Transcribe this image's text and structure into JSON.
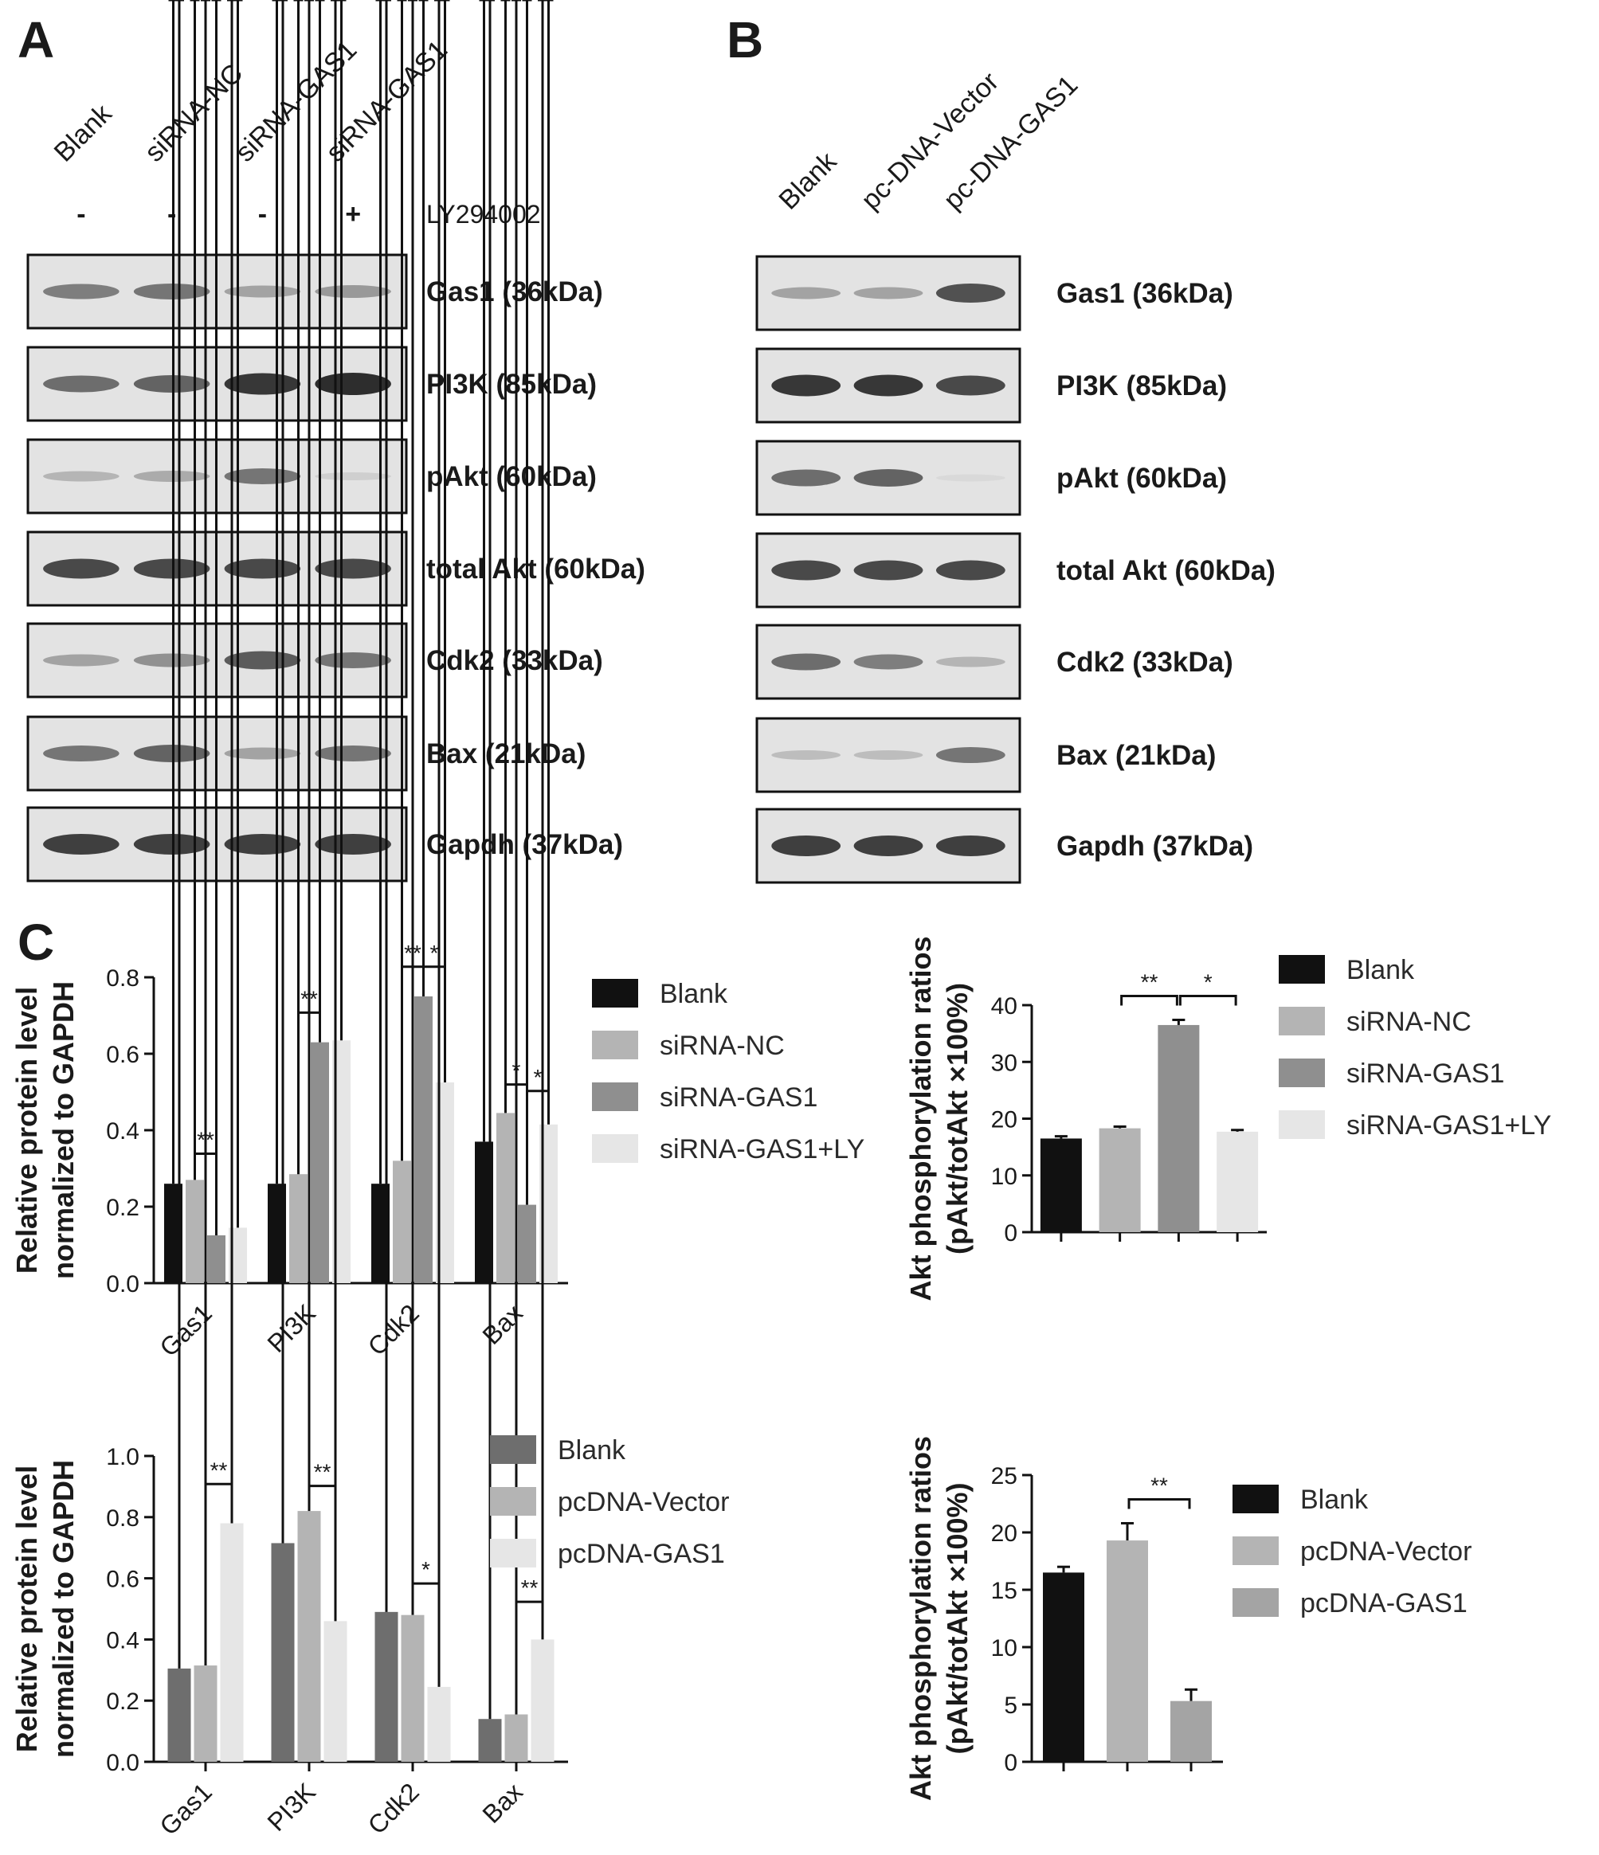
{
  "panel_letters": [
    "A",
    "B",
    "C"
  ],
  "blotA": {
    "lanes": [
      "Blank",
      "siRNA-NC",
      "siRNA-GAS1",
      "siRNA-GAS1"
    ],
    "treatment_signs": [
      "-",
      "-",
      "-",
      "+"
    ],
    "treatment_label": "LY294002",
    "bands": [
      {
        "label": "Gas1 (36kDa)",
        "intensity": [
          0.55,
          0.6,
          0.35,
          0.4
        ]
      },
      {
        "label": "PI3K (85kDa)",
        "intensity": [
          0.65,
          0.7,
          0.95,
          1.0
        ]
      },
      {
        "label": "pAkt (60kDa)",
        "intensity": [
          0.25,
          0.3,
          0.6,
          0.1
        ]
      },
      {
        "label": "total Akt (60kDa)",
        "intensity": [
          0.85,
          0.85,
          0.85,
          0.85
        ]
      },
      {
        "label": "Cdk2 (33kDa)",
        "intensity": [
          0.35,
          0.45,
          0.75,
          0.6
        ]
      },
      {
        "label": "Bax (21kDa)",
        "intensity": [
          0.6,
          0.7,
          0.35,
          0.6
        ]
      },
      {
        "label": "Gapdh (37kDa)",
        "intensity": [
          0.9,
          0.9,
          0.9,
          0.9
        ]
      }
    ]
  },
  "blotB": {
    "lanes": [
      "Blank",
      "pc-DNA-Vector",
      "pc-DNA-GAS1"
    ],
    "bands": [
      {
        "label": "Gas1 (36kDa)",
        "intensity": [
          0.35,
          0.35,
          0.8
        ]
      },
      {
        "label": "PI3K (85kDa)",
        "intensity": [
          0.95,
          0.95,
          0.85
        ]
      },
      {
        "label": "pAkt (60kDa)",
        "intensity": [
          0.65,
          0.7,
          0.05
        ]
      },
      {
        "label": "total Akt (60kDa)",
        "intensity": [
          0.85,
          0.85,
          0.85
        ]
      },
      {
        "label": "Cdk2 (33kDa)",
        "intensity": [
          0.65,
          0.55,
          0.25
        ]
      },
      {
        "label": "Bax (21kDa)",
        "intensity": [
          0.2,
          0.2,
          0.6
        ]
      },
      {
        "label": "Gapdh (37kDa)",
        "intensity": [
          0.9,
          0.9,
          0.9
        ]
      }
    ]
  },
  "chart_data": [
    {
      "type": "bar",
      "categories": [
        "Gas1",
        "PI3K",
        "Cdk2",
        "Bax"
      ],
      "ylabel": [
        "Relative protein level",
        "normalized to GAPDH"
      ],
      "ylim": [
        0,
        0.8
      ],
      "yticks": [
        "0.0",
        "0.2",
        "0.4",
        "0.6",
        "0.8"
      ],
      "legend": "right",
      "series": [
        {
          "name": "Blank",
          "color": "#111111",
          "values": [
            0.26,
            0.26,
            0.26,
            0.37
          ],
          "err": [
            0.004,
            0.01,
            0.004,
            0.008
          ]
        },
        {
          "name": "siRNA-NC",
          "color": "#b4b4b4",
          "values": [
            0.27,
            0.285,
            0.32,
            0.445
          ],
          "err": [
            0.006,
            0.01,
            0.045,
            0.012
          ]
        },
        {
          "name": "siRNA-GAS1",
          "color": "#8f8f8f",
          "values": [
            0.125,
            0.63,
            0.75,
            0.205
          ],
          "err": [
            0.004,
            0.015,
            0.015,
            0.012
          ]
        },
        {
          "name": "siRNA-GAS1+LY",
          "color": "#e6e6e6",
          "values": [
            0.145,
            0.635,
            0.525,
            0.415
          ],
          "err": [
            0.012,
            0.06,
            0.004,
            0.025
          ]
        }
      ],
      "significance": [
        {
          "category": 0,
          "from": 1,
          "to": 2,
          "label": "**"
        },
        {
          "category": 1,
          "from": 1,
          "to": 2,
          "label": "**"
        },
        {
          "category": 2,
          "from": 1,
          "to": 2,
          "label": "**"
        },
        {
          "category": 2,
          "from": 2,
          "to": 3,
          "label": "*"
        },
        {
          "category": 3,
          "from": 1,
          "to": 2,
          "label": "*"
        },
        {
          "category": 3,
          "from": 2,
          "to": 3,
          "label": "*"
        }
      ]
    },
    {
      "type": "bar",
      "categories": [
        "Blank",
        "siRNA-NC",
        "siRNA-GAS1",
        "siRNA-GAS1+LY"
      ],
      "ylabel": [
        "Akt phosphorylation ratios",
        "(pAkt/totAkt ×100%)"
      ],
      "ylim": [
        0,
        40
      ],
      "yticks": [
        "0",
        "10",
        "20",
        "30",
        "40"
      ],
      "legend": "right",
      "series": [
        {
          "name": "Blank",
          "color": "#111111",
          "value": 16.5,
          "err": 0.4
        },
        {
          "name": "siRNA-NC",
          "color": "#b4b4b4",
          "value": 18.3,
          "err": 0.3
        },
        {
          "name": "siRNA-GAS1",
          "color": "#8f8f8f",
          "value": 36.5,
          "err": 0.9
        },
        {
          "name": "siRNA-GAS1+LY",
          "color": "#e6e6e6",
          "value": 17.7,
          "err": 0.3
        }
      ],
      "significance": [
        {
          "from": 1,
          "to": 2,
          "label": "**"
        },
        {
          "from": 2,
          "to": 3,
          "label": "*"
        }
      ]
    },
    {
      "type": "bar",
      "categories": [
        "Gas1",
        "PI3K",
        "Cdk2",
        "Bax"
      ],
      "ylabel": [
        "Relative protein level",
        "normalized to GAPDH"
      ],
      "ylim": [
        0,
        1.0
      ],
      "yticks": [
        "0.0",
        "0.2",
        "0.4",
        "0.6",
        "0.8",
        "1.0"
      ],
      "legend": "right",
      "series": [
        {
          "name": "Blank",
          "color": "#6e6e6e",
          "values": [
            0.305,
            0.715,
            0.49,
            0.14
          ],
          "err": [
            0.02,
            0.02,
            0.004,
            0.004
          ]
        },
        {
          "name": "pcDNA-Vector",
          "color": "#b4b4b4",
          "values": [
            0.315,
            0.82,
            0.48,
            0.155
          ],
          "err": [
            0.008,
            0.004,
            0.025,
            0.006
          ]
        },
        {
          "name": "pcDNA-GAS1",
          "color": "#e6e6e6",
          "values": [
            0.78,
            0.46,
            0.245,
            0.4
          ],
          "err": [
            0.05,
            0.015,
            0.01,
            0.045
          ]
        }
      ],
      "significance": [
        {
          "category": 0,
          "from": 1,
          "to": 2,
          "label": "**"
        },
        {
          "category": 1,
          "from": 1,
          "to": 2,
          "label": "**"
        },
        {
          "category": 2,
          "from": 1,
          "to": 2,
          "label": "*"
        },
        {
          "category": 3,
          "from": 1,
          "to": 2,
          "label": "**"
        }
      ]
    },
    {
      "type": "bar",
      "categories": [
        "Blank",
        "pcDNA-Vector",
        "pcDNA-GAS1"
      ],
      "ylabel": [
        "Akt phosphorylation ratios",
        "(pAkt/totAkt ×100%)"
      ],
      "ylim": [
        0,
        25
      ],
      "yticks": [
        "0",
        "5",
        "10",
        "15",
        "20",
        "25"
      ],
      "legend": "right",
      "series": [
        {
          "name": "Blank",
          "color": "#111111",
          "value": 16.5,
          "err": 0.5
        },
        {
          "name": "pcDNA-Vector",
          "color": "#b4b4b4",
          "value": 19.3,
          "err": 1.5
        },
        {
          "name": "pcDNA-GAS1",
          "color": "#a4a4a4",
          "value": 5.3,
          "err": 1.0
        }
      ],
      "significance": [
        {
          "from": 1,
          "to": 2,
          "label": "**"
        }
      ]
    }
  ]
}
